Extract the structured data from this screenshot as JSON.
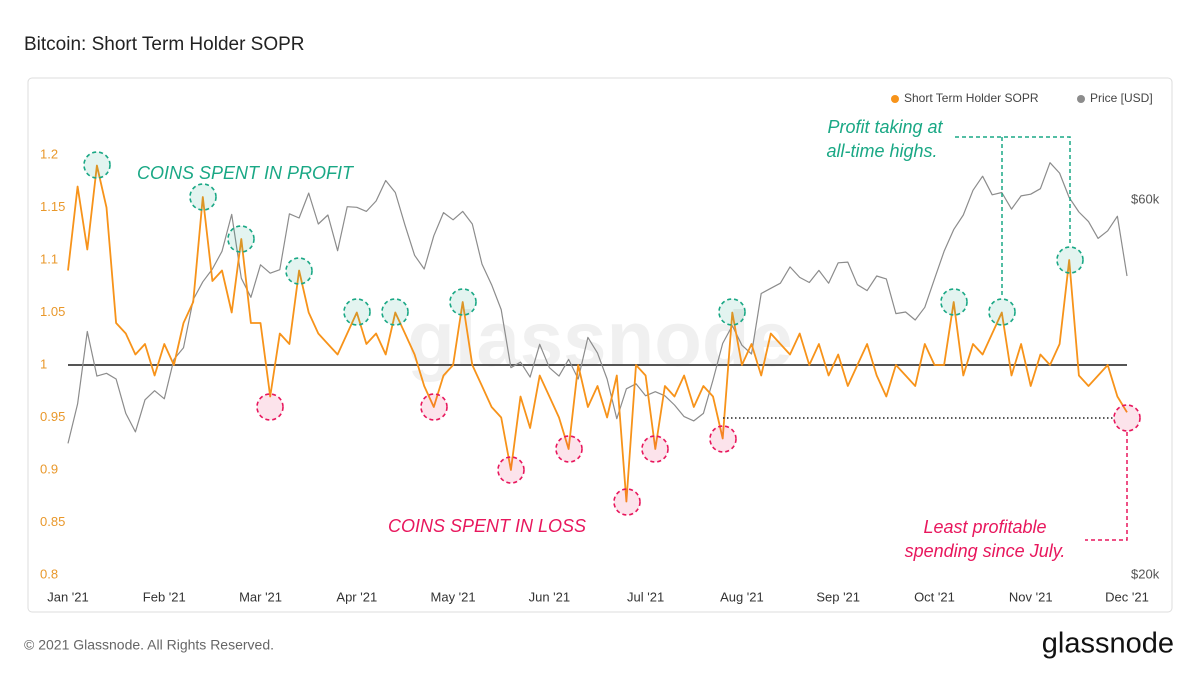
{
  "chart_data": {
    "type": "line",
    "title": "Bitcoin: Short Term Holder SOPR",
    "watermark": "glassnode",
    "categories": [
      "Jan '21",
      null,
      null,
      null,
      null,
      null,
      null,
      null,
      null,
      null,
      "Feb '21",
      null,
      null,
      null,
      null,
      null,
      null,
      null,
      null,
      null,
      "Mar '21",
      null,
      null,
      null,
      null,
      null,
      null,
      null,
      null,
      null,
      "Apr '21",
      null,
      null,
      null,
      null,
      null,
      null,
      null,
      null,
      null,
      "May '21",
      null,
      null,
      null,
      null,
      null,
      null,
      null,
      null,
      null,
      "Jun '21",
      null,
      null,
      null,
      null,
      null,
      null,
      null,
      null,
      null,
      "Jul '21",
      null,
      null,
      null,
      null,
      null,
      null,
      null,
      null,
      null,
      "Aug '21",
      null,
      null,
      null,
      null,
      null,
      null,
      null,
      null,
      null,
      "Sep '21",
      null,
      null,
      null,
      null,
      null,
      null,
      null,
      null,
      null,
      "Oct '21",
      null,
      null,
      null,
      null,
      null,
      null,
      null,
      null,
      null,
      "Nov '21",
      null,
      null,
      null,
      null,
      null,
      null,
      null,
      null,
      null,
      "Dec '21"
    ],
    "series": [
      {
        "name": "Short Term Holder SOPR",
        "color": "#f7931a",
        "axis": "y",
        "values": [
          1.09,
          1.17,
          1.11,
          1.19,
          1.15,
          1.04,
          1.03,
          1.01,
          1.02,
          0.99,
          1.02,
          1.0,
          1.04,
          1.06,
          1.16,
          1.08,
          1.09,
          1.05,
          1.12,
          1.04,
          1.04,
          0.97,
          1.03,
          1.02,
          1.09,
          1.05,
          1.03,
          1.02,
          1.01,
          1.03,
          1.05,
          1.02,
          1.03,
          1.01,
          1.05,
          1.03,
          1.01,
          0.98,
          0.96,
          0.99,
          1.0,
          1.06,
          1.0,
          0.98,
          0.96,
          0.95,
          0.9,
          0.97,
          0.94,
          0.99,
          0.97,
          0.95,
          0.92,
          1.0,
          0.96,
          0.98,
          0.95,
          0.99,
          0.87,
          1.0,
          0.99,
          0.92,
          0.98,
          0.97,
          0.99,
          0.96,
          0.98,
          0.97,
          0.93,
          1.05,
          1.0,
          1.02,
          0.99,
          1.03,
          1.02,
          1.01,
          1.03,
          1.0,
          1.02,
          0.99,
          1.01,
          0.98,
          1.0,
          1.02,
          0.99,
          0.97,
          1.0,
          0.99,
          0.98,
          1.02,
          1.0,
          1.0,
          1.06,
          0.99,
          1.02,
          1.01,
          1.03,
          1.05,
          0.99,
          1.02,
          0.98,
          1.01,
          1.0,
          1.02,
          1.1,
          0.99,
          0.98,
          0.99,
          1.0,
          0.97,
          0.955
        ]
      },
      {
        "name": "Price [USD]",
        "color": "#8c8c8c",
        "axis": "y2",
        "values": [
          29400,
          33000,
          40800,
          35800,
          36100,
          35500,
          32100,
          30400,
          33400,
          34300,
          33500,
          37600,
          38900,
          44800,
          47200,
          49000,
          51600,
          57500,
          47700,
          45100,
          49600,
          48400,
          48900,
          57600,
          56900,
          61200,
          55900,
          57400,
          51700,
          58800,
          58700,
          58000,
          59800,
          63500,
          61300,
          55700,
          51000,
          49000,
          54000,
          57800,
          56600,
          58000,
          55900,
          49700,
          46800,
          43500,
          36700,
          37300,
          35700,
          39300,
          36700,
          35800,
          37600,
          35500,
          40100,
          38300,
          35500,
          31600,
          34500,
          35000,
          33800,
          34200,
          33800,
          32900,
          31800,
          31400,
          32100,
          35400,
          39400,
          41500,
          39200,
          38200,
          45600,
          46300,
          47000,
          49300,
          47800,
          47100,
          48800,
          47000,
          49900,
          50000,
          46800,
          46000,
          48000,
          47600,
          43000,
          43200,
          42200,
          43800,
          47600,
          51600,
          55000,
          57400,
          61700,
          64300,
          60900,
          61300,
          58400,
          60700,
          61000,
          62000,
          66900,
          64900,
          60400,
          57900,
          56300,
          53600,
          54800,
          57200,
          48000
        ]
      }
    ],
    "ylim": [
      0.78,
      1.25
    ],
    "yticks": [
      0.8,
      0.85,
      0.9,
      0.95,
      1,
      1.05,
      1.1,
      1.15,
      1.2
    ],
    "y2lim": [
      18800,
      79800
    ],
    "y2ticks": [
      {
        "value": 20000,
        "label": "$20k"
      },
      {
        "value": 60000,
        "label": "$60k"
      }
    ],
    "y2log": true,
    "baseline": 1,
    "grid": false,
    "legend": "top-right",
    "annotations": {
      "profit": "COINS SPENT IN PROFIT",
      "loss": "COINS SPENT IN LOSS",
      "ath": [
        "Profit taking at",
        "all-time highs."
      ],
      "july": [
        "Least profitable",
        "spending since July."
      ]
    }
  },
  "footer": {
    "copyright": "© 2021 Glassnode. All Rights Reserved.",
    "logo": "glassnode"
  }
}
